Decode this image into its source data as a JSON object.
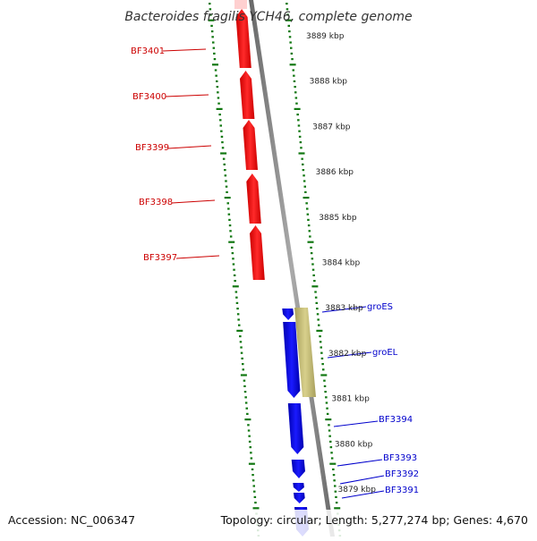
{
  "title": "Bacteroides fragilis YCH46, complete genome",
  "footer": {
    "accession": "Accession: NC_006347",
    "summary": "Topology: circular; Length: 5,277,274 bp; Genes: 4,670"
  },
  "colors": {
    "forward_gene": "#ff0000",
    "reverse_gene": "#0000ff",
    "rna_gene": "#c8bf73",
    "backbone": "#888888",
    "tick_marks": "#117711",
    "red_label": "#cc0000",
    "blue_label": "#0000cc"
  },
  "chart_data": {
    "type": "genome-map",
    "kbp_labels": [
      "3889 kbp",
      "3888 kbp",
      "3887 kbp",
      "3886 kbp",
      "3885 kbp",
      "3884 kbp",
      "3883 kbp",
      "3882 kbp",
      "3881 kbp",
      "3880 kbp",
      "3879 kbp"
    ],
    "genes": [
      {
        "name": "BF3401",
        "strand": "forward"
      },
      {
        "name": "BF3400",
        "strand": "forward"
      },
      {
        "name": "BF3399",
        "strand": "forward"
      },
      {
        "name": "BF3398",
        "strand": "forward"
      },
      {
        "name": "BF3397",
        "strand": "forward"
      },
      {
        "name": "groES",
        "strand": "reverse"
      },
      {
        "name": "groEL",
        "strand": "reverse"
      },
      {
        "name": "BF3394",
        "strand": "reverse"
      },
      {
        "name": "BF3393",
        "strand": "reverse"
      },
      {
        "name": "BF3392",
        "strand": "reverse"
      },
      {
        "name": "BF3391",
        "strand": "reverse"
      }
    ]
  }
}
